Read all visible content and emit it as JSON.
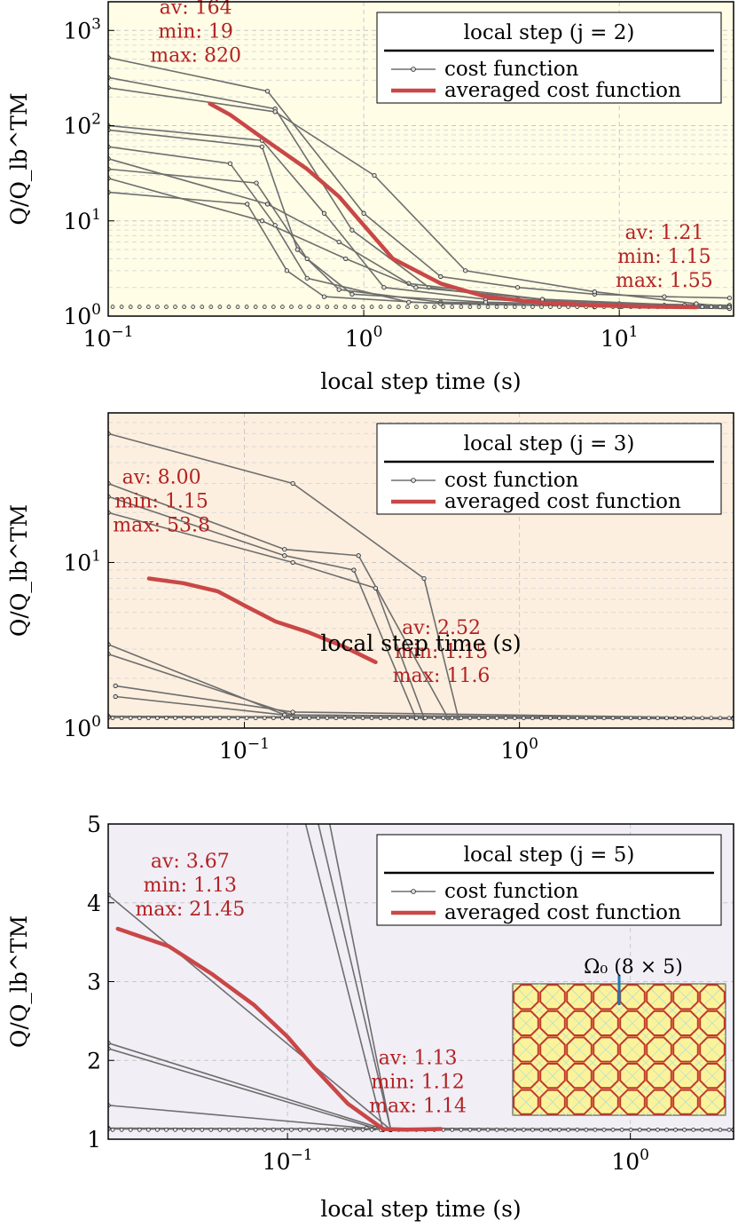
{
  "chart_data": [
    {
      "type": "line",
      "xscale": "log",
      "yscale": "log",
      "xlim": [
        0.1,
        28
      ],
      "ylim": [
        1,
        2000
      ],
      "xlabel": "local step time (s)",
      "ylabel": "Q/Q_lb^TM",
      "xticks": [
        {
          "v": 0.1,
          "b": "10",
          "e": "−1"
        },
        {
          "v": 1,
          "b": "10",
          "e": "0"
        },
        {
          "v": 10,
          "b": "10",
          "e": "1"
        }
      ],
      "yticks": [
        {
          "v": 1,
          "b": "10",
          "e": "0"
        },
        {
          "v": 10,
          "b": "10",
          "e": "1"
        },
        {
          "v": 100,
          "b": "10",
          "e": "2"
        },
        {
          "v": 1000,
          "b": "10",
          "e": "3"
        }
      ],
      "bg": "#fffde6",
      "grid": true,
      "legend": {
        "title": "local step (j = 2)",
        "items": [
          "cost function",
          "averaged cost function"
        ],
        "placement": "top-right"
      },
      "annotations": [
        {
          "lines": [
            "av: 164",
            "min: 19",
            "max: 820"
          ],
          "x": 0.22,
          "y": 1500
        },
        {
          "lines": [
            "av: 1.21",
            "min: 1.15",
            "max: 1.55"
          ],
          "x": 15,
          "y": 6.5
        }
      ],
      "averaged": {
        "x": [
          0.25,
          0.3,
          0.4,
          0.6,
          0.8,
          1.0,
          1.3,
          2,
          3,
          5,
          8,
          12,
          20
        ],
        "y": [
          170,
          130,
          75,
          35,
          18,
          9,
          4,
          2.2,
          1.6,
          1.38,
          1.3,
          1.26,
          1.24
        ]
      },
      "series": [
        {
          "x": [
            0.1,
            0.42,
            1.0,
            2.0,
            4.0,
            8.0,
            15,
            27
          ],
          "y": [
            520,
            230,
            12,
            2.6,
            2.0,
            1.7,
            1.6,
            1.55
          ]
        },
        {
          "x": [
            0.1,
            0.45,
            0.9,
            1.8,
            4.0,
            10,
            27
          ],
          "y": [
            320,
            150,
            8,
            2.0,
            1.5,
            1.35,
            1.3
          ]
        },
        {
          "x": [
            0.1,
            0.4,
            0.7,
            1.2,
            3,
            10,
            27
          ],
          "y": [
            100,
            70,
            12,
            2.0,
            1.5,
            1.3,
            1.25
          ]
        },
        {
          "x": [
            0.1,
            0.4,
            0.55,
            0.8,
            2,
            10,
            27
          ],
          "y": [
            90,
            60,
            5,
            1.9,
            1.4,
            1.3,
            1.25
          ]
        },
        {
          "x": [
            0.1,
            0.38,
            0.6,
            0.9,
            3,
            12,
            27
          ],
          "y": [
            35,
            25,
            4,
            1.7,
            1.4,
            1.28,
            1.22
          ]
        },
        {
          "x": [
            0.1,
            0.35,
            0.5,
            0.7,
            2,
            10,
            27
          ],
          "y": [
            20,
            15,
            3,
            1.6,
            1.35,
            1.25,
            1.2
          ]
        },
        {
          "x": [
            0.1,
            0.42,
            0.8,
            1.5,
            5,
            15,
            27
          ],
          "y": [
            45,
            15,
            6,
            2.2,
            1.5,
            1.3,
            1.22
          ]
        },
        {
          "x": [
            0.1,
            0.45,
            1.1,
            2.5,
            8,
            20,
            27
          ],
          "y": [
            250,
            140,
            30,
            3.0,
            1.8,
            1.35,
            1.25
          ]
        },
        {
          "x": [
            0.1,
            0.4,
            0.85,
            1.6,
            5,
            18,
            27
          ],
          "y": [
            28,
            10,
            4,
            2,
            1.5,
            1.3,
            1.25
          ]
        },
        {
          "x": [
            0.1,
            0.3,
            0.45,
            0.6,
            1.5,
            8,
            27
          ],
          "y": [
            60,
            40,
            9,
            2.5,
            1.4,
            1.25,
            1.2
          ]
        }
      ]
    },
    {
      "type": "line",
      "xscale": "log",
      "yscale": "log",
      "xlim": [
        0.032,
        6
      ],
      "ylim": [
        1,
        80
      ],
      "xlabel": "local step time (s)",
      "ylabel": "Q/Q_lb^TM",
      "xticks": [
        {
          "v": 0.1,
          "b": "10",
          "e": "−1"
        },
        {
          "v": 1,
          "b": "10",
          "e": "0"
        }
      ],
      "yticks": [
        {
          "v": 1,
          "b": "10",
          "e": "0"
        },
        {
          "v": 10,
          "b": "10",
          "e": "1"
        }
      ],
      "bg": "#fdefdf",
      "grid": true,
      "legend": {
        "title": "local step (j = 3)",
        "items": [
          "cost function",
          "averaged cost function"
        ],
        "placement": "top-right"
      },
      "annotations": [
        {
          "lines": [
            "av: 8.00",
            "min: 1.15",
            "max: 53.8"
          ],
          "x": 0.05,
          "y": 30
        },
        {
          "lines": [
            "av: 2.52",
            "min: 1.15",
            "max: 11.6"
          ],
          "x": 0.52,
          "y": 3.7
        }
      ],
      "averaged": {
        "x": [
          0.045,
          0.06,
          0.08,
          0.1,
          0.13,
          0.17,
          0.23,
          0.3
        ],
        "y": [
          8.0,
          7.5,
          6.7,
          5.5,
          4.4,
          3.8,
          3.1,
          2.5
        ]
      },
      "series": [
        {
          "x": [
            0.032,
            0.15,
            0.45,
            0.6,
            6
          ],
          "y": [
            60,
            30,
            8,
            1.15,
            1.15
          ]
        },
        {
          "x": [
            0.032,
            0.14,
            0.26,
            0.55,
            6
          ],
          "y": [
            30,
            12,
            11,
            1.15,
            1.15
          ]
        },
        {
          "x": [
            0.032,
            0.14,
            0.25,
            0.42,
            6
          ],
          "y": [
            25,
            11,
            9,
            1.15,
            1.15
          ]
        },
        {
          "x": [
            0.032,
            0.15,
            0.3,
            0.45,
            6
          ],
          "y": [
            20,
            10,
            7,
            1.15,
            1.15
          ]
        },
        {
          "x": [
            0.032,
            0.15,
            6
          ],
          "y": [
            3.2,
            1.15,
            1.15
          ]
        },
        {
          "x": [
            0.032,
            0.15,
            6
          ],
          "y": [
            2.8,
            1.2,
            1.15
          ]
        },
        {
          "x": [
            0.034,
            0.15,
            6
          ],
          "y": [
            1.8,
            1.25,
            1.15
          ]
        },
        {
          "x": [
            0.034,
            0.14,
            6
          ],
          "y": [
            1.55,
            1.2,
            1.15
          ]
        },
        {
          "x": [
            0.032,
            6
          ],
          "y": [
            1.18,
            1.15
          ]
        },
        {
          "x": [
            0.032,
            6
          ],
          "y": [
            1.16,
            1.14
          ]
        }
      ]
    },
    {
      "type": "line",
      "xscale": "log",
      "yscale": "linear",
      "xlim": [
        0.03,
        2
      ],
      "ylim": [
        1,
        5
      ],
      "xlabel": "local step time (s)",
      "ylabel": "Q/Q_lb^TM",
      "xticks": [
        {
          "v": 0.1,
          "b": "10",
          "e": "−1"
        },
        {
          "v": 1,
          "b": "10",
          "e": "0"
        }
      ],
      "yticks": [
        {
          "v": 1,
          "b": "1",
          "e": ""
        },
        {
          "v": 2,
          "b": "2",
          "e": ""
        },
        {
          "v": 3,
          "b": "3",
          "e": ""
        },
        {
          "v": 4,
          "b": "4",
          "e": ""
        },
        {
          "v": 5,
          "b": "5",
          "e": ""
        }
      ],
      "bg": "#f1eef6",
      "grid": true,
      "legend": {
        "title": "local step (j = 5)",
        "items": [
          "cost function",
          "averaged cost function"
        ],
        "placement": "top-right"
      },
      "annotations": [
        {
          "lines": [
            "av: 3.67",
            "min: 1.13",
            "max: 21.45"
          ],
          "x": 0.052,
          "y": 4.45
        },
        {
          "lines": [
            "av: 1.13",
            "min: 1.12",
            "max: 1.14"
          ],
          "x": 0.24,
          "y": 1.95
        }
      ],
      "inset": {
        "label": "Ω₀ (8 × 5)",
        "cols": 8,
        "rows": 5,
        "fill": "#fbf39a",
        "stroke": "#c0392b"
      },
      "averaged": {
        "x": [
          0.032,
          0.045,
          0.06,
          0.08,
          0.1,
          0.12,
          0.15,
          0.19,
          0.22,
          0.28
        ],
        "y": [
          3.67,
          3.45,
          3.1,
          2.7,
          2.3,
          1.9,
          1.45,
          1.13,
          1.12,
          1.13
        ]
      },
      "series": [
        {
          "x": [
            0.03,
            0.2,
            2
          ],
          "y": [
            4.1,
            1.12,
            1.12
          ]
        },
        {
          "x": [
            0.11,
            0.19,
            2
          ],
          "y": [
            5.2,
            1.12,
            1.12
          ]
        },
        {
          "x": [
            0.12,
            0.2,
            2
          ],
          "y": [
            5.2,
            1.12,
            1.12
          ]
        },
        {
          "x": [
            0.13,
            0.2,
            2
          ],
          "y": [
            5.2,
            1.12,
            1.12
          ]
        },
        {
          "x": [
            0.03,
            0.19,
            2
          ],
          "y": [
            2.22,
            1.13,
            1.12
          ]
        },
        {
          "x": [
            0.03,
            0.18,
            2
          ],
          "y": [
            2.15,
            1.14,
            1.12
          ]
        },
        {
          "x": [
            0.03,
            0.17,
            2
          ],
          "y": [
            1.43,
            1.14,
            1.12
          ]
        },
        {
          "x": [
            0.03,
            2
          ],
          "y": [
            1.14,
            1.12
          ]
        },
        {
          "x": [
            0.03,
            2
          ],
          "y": [
            1.13,
            1.12
          ]
        }
      ]
    }
  ]
}
